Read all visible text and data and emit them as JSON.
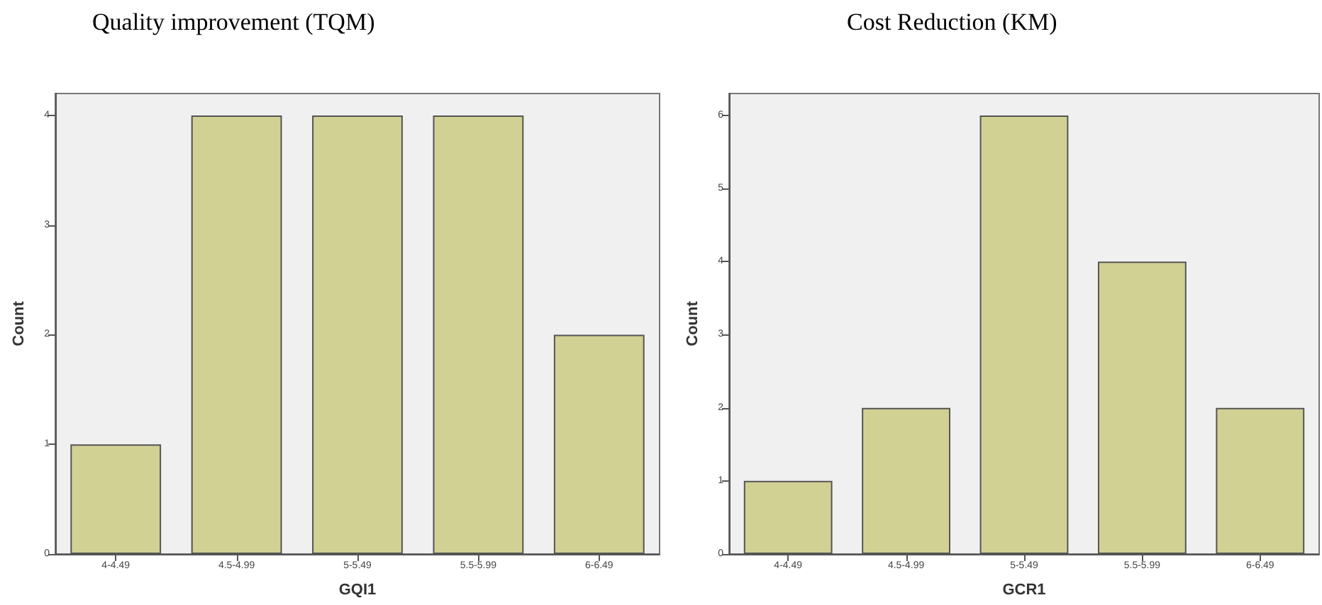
{
  "chart_data": [
    {
      "type": "bar",
      "title": "Quality improvement (TQM)",
      "xlabel": "GQI1",
      "ylabel": "Count",
      "categories": [
        "4-4.49",
        "4.5-4.99",
        "5-5.49",
        "5.5-5.99",
        "6-6.49"
      ],
      "values": [
        1,
        4,
        4,
        4,
        2
      ],
      "color": "#d2d194",
      "ylim": [
        0,
        4.2
      ],
      "yticks": [
        0,
        1,
        2,
        3,
        4
      ],
      "grid": false
    },
    {
      "type": "bar",
      "title": "Cost Reduction (KM)",
      "xlabel": "GCR1",
      "ylabel": "Count",
      "categories": [
        "4-4.49",
        "4.5-4.99",
        "5-5.49",
        "5.5-5.99",
        "6-6.49"
      ],
      "values": [
        1,
        2,
        6,
        4,
        2
      ],
      "color": "#d2d194",
      "ylim": [
        0,
        6.3
      ],
      "yticks": [
        0,
        1,
        2,
        3,
        4,
        5,
        6
      ],
      "grid": false
    }
  ]
}
